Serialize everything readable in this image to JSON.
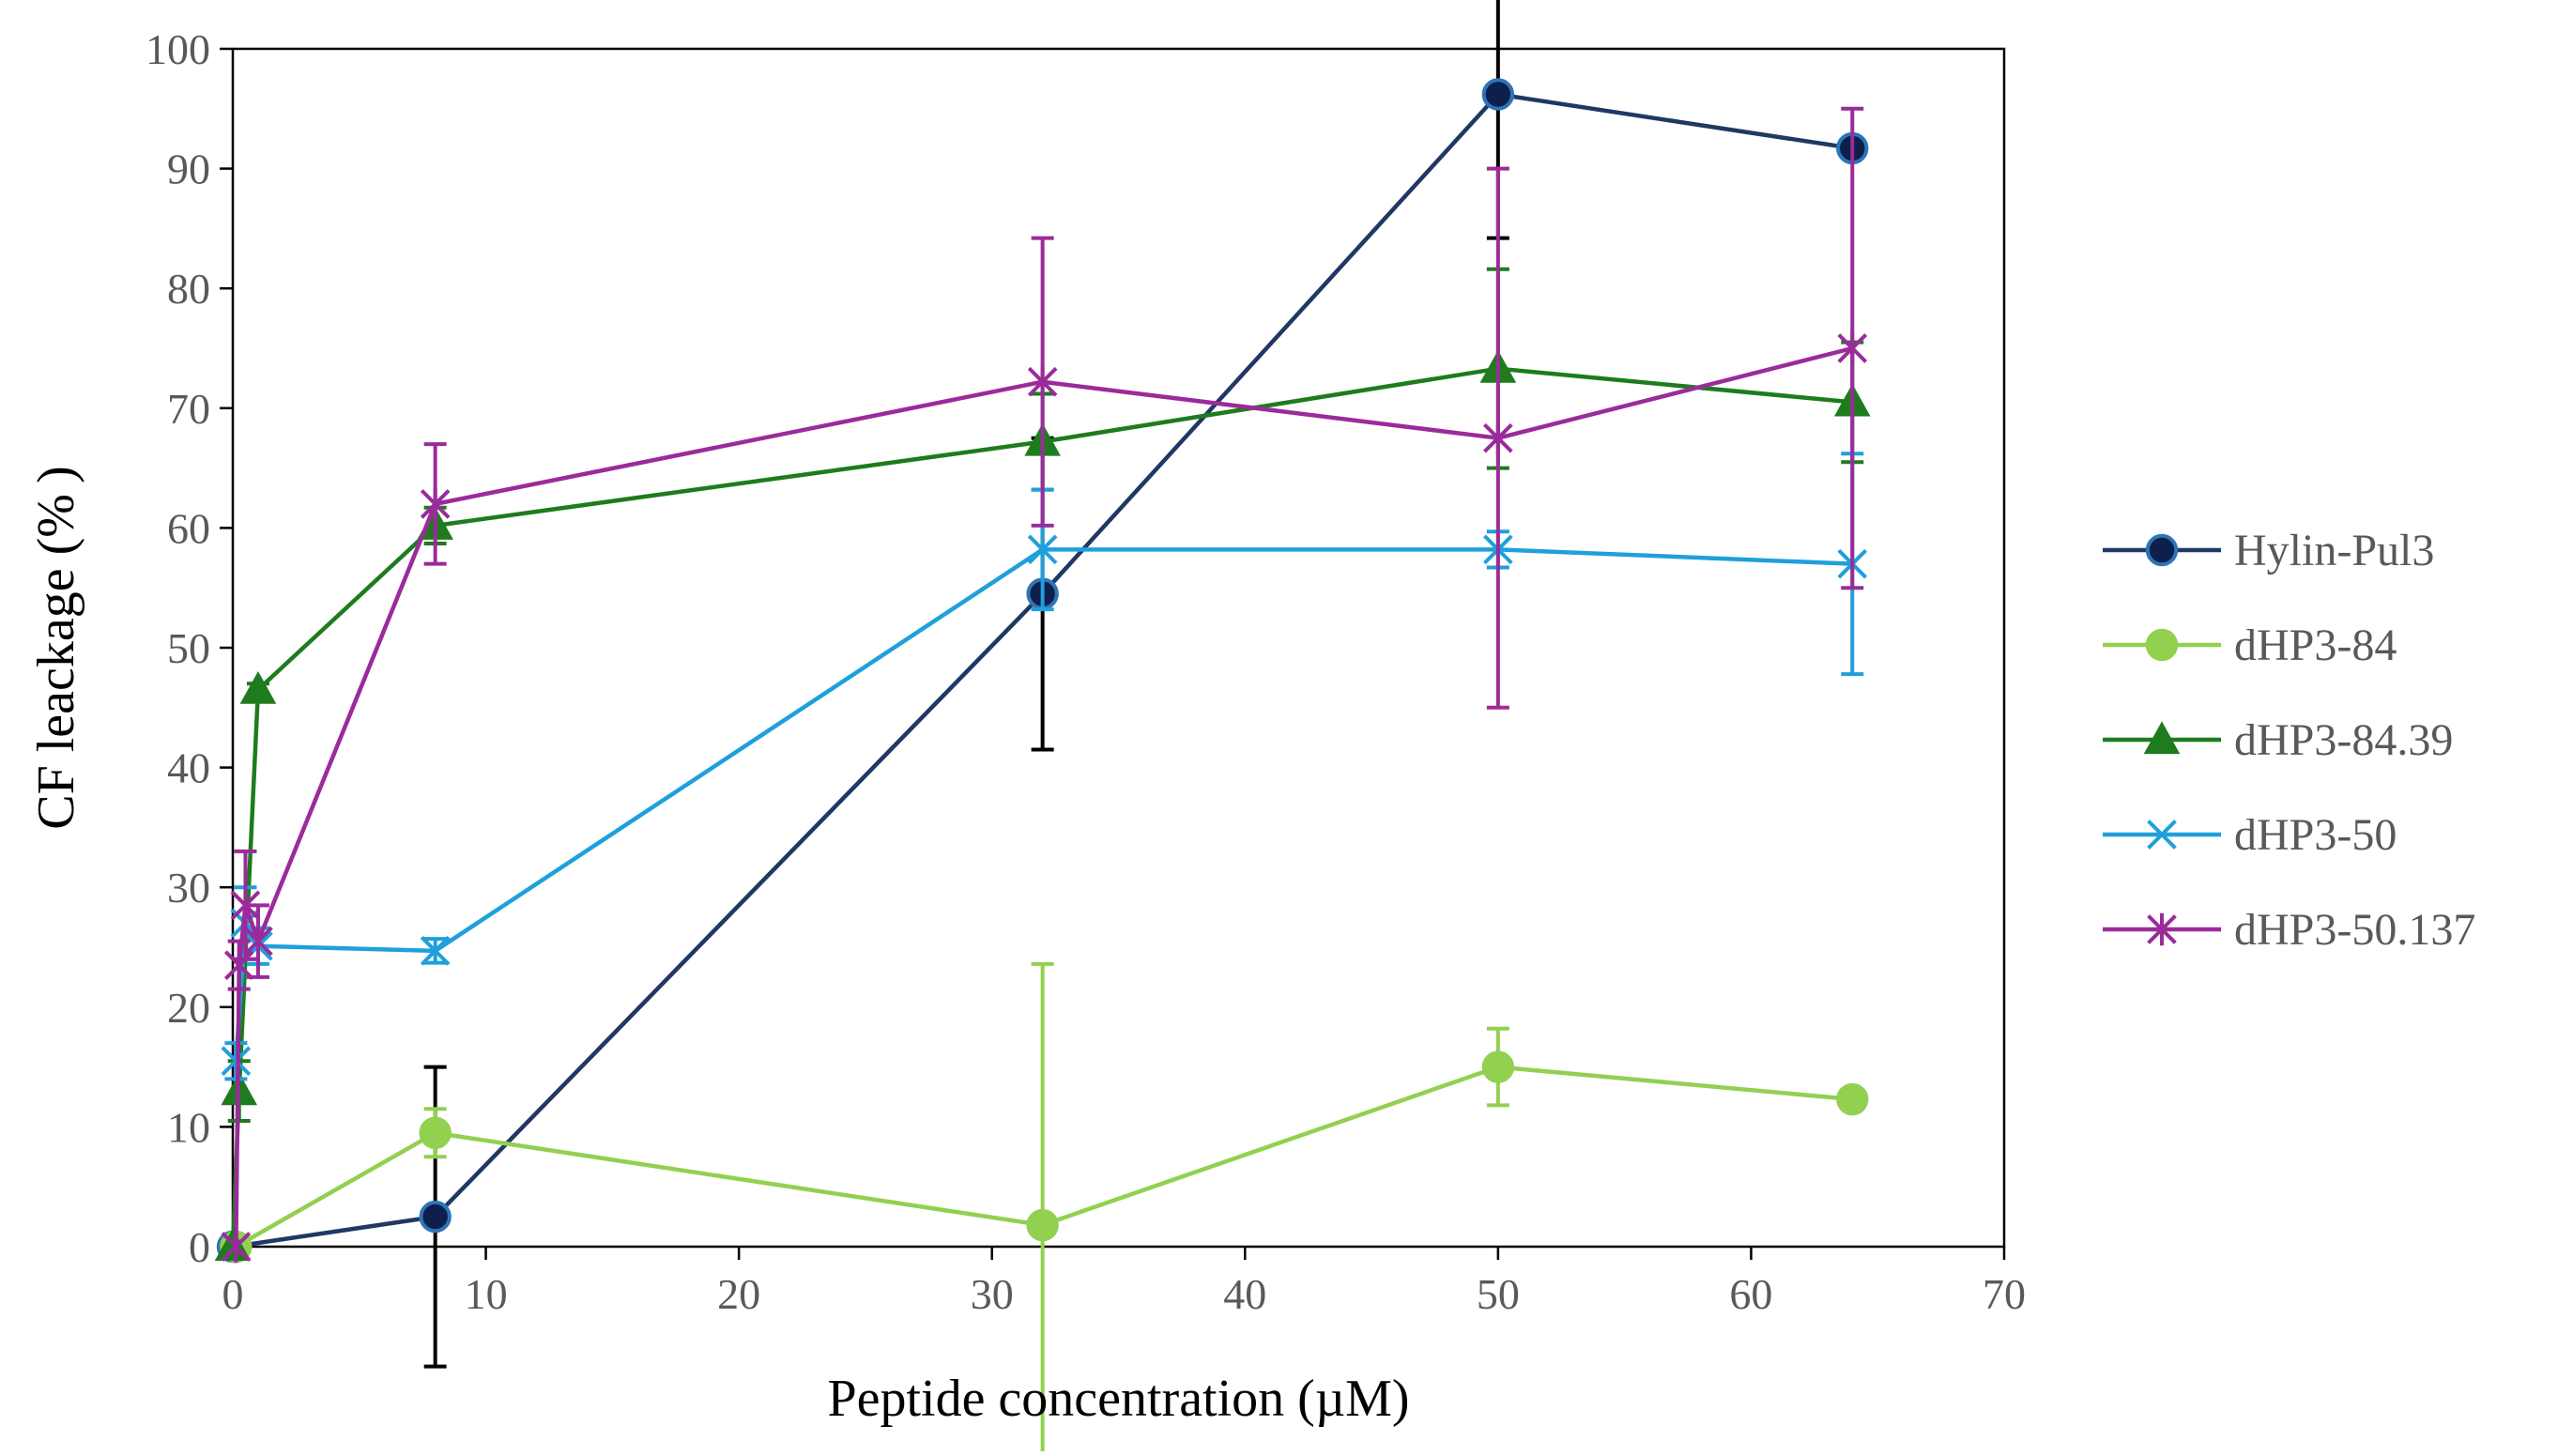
{
  "chart_data": {
    "type": "line",
    "title": "",
    "xlabel": "Peptide concentration (µM)",
    "ylabel": "CF leackage (% )",
    "xlim": [
      0,
      70
    ],
    "ylim": [
      0,
      100
    ],
    "xticks": [
      0,
      10,
      20,
      30,
      40,
      50,
      60,
      70
    ],
    "yticks": [
      0,
      10,
      20,
      30,
      40,
      50,
      60,
      70,
      80,
      90,
      100
    ],
    "grid": false,
    "legend_position": "right",
    "series": [
      {
        "name": "Hylin-Pul3",
        "color": "#1f3864",
        "marker": "circle",
        "marker_fill": "#0d1f4a",
        "marker_stroke": "#2e75b6",
        "error_color": "#000000",
        "points": [
          {
            "x": 0,
            "y": 0,
            "err": 0
          },
          {
            "x": 8,
            "y": 2.5,
            "err": 12.5
          },
          {
            "x": 32,
            "y": 54.5,
            "err": 13
          },
          {
            "x": 50,
            "y": 96.2,
            "err": 12
          },
          {
            "x": 64,
            "y": 91.7,
            "err": 0
          }
        ]
      },
      {
        "name": "dHP3-84",
        "color": "#92d050",
        "marker": "circle",
        "marker_fill": "#92d050",
        "marker_stroke": "#92d050",
        "error_color": "#92d050",
        "points": [
          {
            "x": 0.125,
            "y": 0,
            "err": 0
          },
          {
            "x": 8,
            "y": 9.5,
            "err": 2
          },
          {
            "x": 32,
            "y": 1.8,
            "err": 21.8
          },
          {
            "x": 50,
            "y": 15,
            "err": 3.2
          },
          {
            "x": 64,
            "y": 12.3,
            "err": 0
          }
        ]
      },
      {
        "name": "dHP3-84.39",
        "color": "#1e7b1e",
        "marker": "triangle",
        "marker_fill": "#1e7b1e",
        "marker_stroke": "#1e7b1e",
        "error_color": "#1e7b1e",
        "points": [
          {
            "x": 0,
            "y": 0,
            "err": 0
          },
          {
            "x": 0.25,
            "y": 13,
            "err": 2.5
          },
          {
            "x": 1,
            "y": 46.5,
            "err": 0.5
          },
          {
            "x": 8,
            "y": 60.2,
            "err": 1.5
          },
          {
            "x": 32,
            "y": 67.2,
            "err": 4
          },
          {
            "x": 50,
            "y": 73.3,
            "err": 8.3
          },
          {
            "x": 64,
            "y": 70.5,
            "err": 5
          }
        ]
      },
      {
        "name": "dHP3-50",
        "color": "#1ea0dc",
        "marker": "x",
        "marker_fill": "none",
        "marker_stroke": "#1ea0dc",
        "error_color": "#1ea0dc",
        "points": [
          {
            "x": 0.125,
            "y": 15.5,
            "err": 1.5
          },
          {
            "x": 0.5,
            "y": 27,
            "err": 3
          },
          {
            "x": 1,
            "y": 25.1,
            "err": 1.5
          },
          {
            "x": 8,
            "y": 24.7,
            "err": 1
          },
          {
            "x": 32,
            "y": 58.2,
            "err": 5
          },
          {
            "x": 50,
            "y": 58.2,
            "err": 1.5
          },
          {
            "x": 64,
            "y": 57,
            "err": 9.2
          }
        ]
      },
      {
        "name": "dHP3-50.137",
        "color": "#9b2b9b",
        "marker": "star",
        "marker_fill": "none",
        "marker_stroke": "#9b2b9b",
        "error_color": "#9b2b9b",
        "points": [
          {
            "x": 0.125,
            "y": 0,
            "err": 0
          },
          {
            "x": 0.25,
            "y": 23.5,
            "err": 2
          },
          {
            "x": 0.5,
            "y": 28.5,
            "err": 4.5
          },
          {
            "x": 1,
            "y": 25.5,
            "err": 3
          },
          {
            "x": 8,
            "y": 62,
            "err": 5
          },
          {
            "x": 32,
            "y": 72.2,
            "err": 12
          },
          {
            "x": 50,
            "y": 67.5,
            "err": 22.5
          },
          {
            "x": 64,
            "y": 75,
            "err": 20
          }
        ]
      }
    ]
  }
}
